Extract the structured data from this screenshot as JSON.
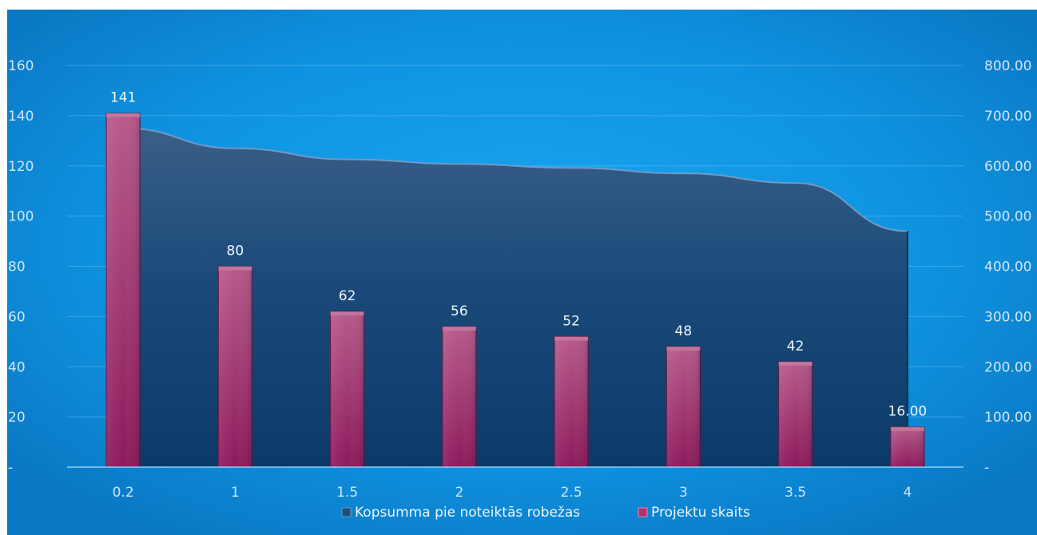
{
  "chart_data": {
    "type": "bar",
    "categories": [
      "0.2",
      "1",
      "1.5",
      "2",
      "2.5",
      "3",
      "3.5",
      "4"
    ],
    "series": [
      {
        "name": "Kopsumma pie noteiktās robežas",
        "type": "area",
        "axis": "right",
        "values": [
          675,
          635,
          613,
          604,
          596,
          585,
          566,
          470
        ],
        "color": "#1b4f80"
      },
      {
        "name": "Projektu skaits",
        "type": "bar",
        "axis": "left",
        "values": [
          141,
          80,
          62,
          56,
          52,
          48,
          42,
          16
        ],
        "data_labels": [
          "141",
          "80",
          "62",
          "56",
          "52",
          "48",
          "42",
          "16.00"
        ],
        "color": "#b3306f"
      }
    ],
    "y_left": {
      "min": 0,
      "max": 160,
      "ticks": [
        "-",
        "20",
        "40",
        "60",
        "80",
        "100",
        "120",
        "140",
        "160"
      ]
    },
    "y_right": {
      "min": 0,
      "max": 800,
      "ticks": [
        "-",
        "100.00",
        "200.00",
        "300.00",
        "400.00",
        "500.00",
        "600.00",
        "700.00",
        "800.00"
      ]
    },
    "grid": true,
    "legend_position": "bottom",
    "background_color": "#129fe9"
  }
}
